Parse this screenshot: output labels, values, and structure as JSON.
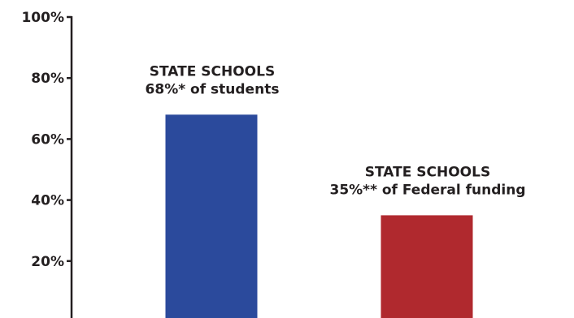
{
  "chart_data": {
    "type": "bar",
    "categories": [
      "STATE SCHOOLS",
      "STATE SCHOOLS"
    ],
    "values": [
      68,
      35
    ],
    "bar_colors": [
      "#2b4a9c",
      "#b0292e"
    ],
    "annotations": [
      {
        "line1": "STATE SCHOOLS",
        "line2": "68%* of students"
      },
      {
        "line1": "STATE SCHOOLS",
        "line2": "35%** of Federal funding"
      }
    ],
    "y_ticks": [
      {
        "value": 100,
        "label": "100%"
      },
      {
        "value": 80,
        "label": "80%"
      },
      {
        "value": 60,
        "label": "60%"
      },
      {
        "value": 40,
        "label": "40%"
      },
      {
        "value": 20,
        "label": "20%"
      }
    ],
    "ylim": [
      0,
      100
    ],
    "grid": false,
    "axis_color": "#231f20"
  }
}
